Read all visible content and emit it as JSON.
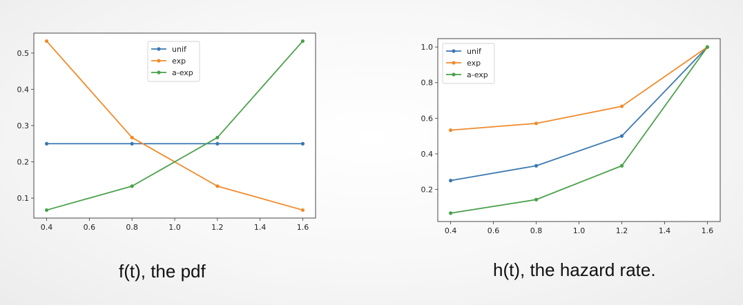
{
  "captions": [
    "f(t), the pdf",
    "h(t), the hazard rate."
  ],
  "chart_data": [
    {
      "type": "line",
      "title": "",
      "xlabel": "",
      "ylabel": "",
      "x": [
        0.4,
        0.8,
        1.2,
        1.6
      ],
      "xticks": [
        "0.4",
        "0.6",
        "0.8",
        "1.0",
        "1.2",
        "1.4",
        "1.6"
      ],
      "yticks": [
        "0.1",
        "0.2",
        "0.3",
        "0.4",
        "0.5"
      ],
      "xlim": [
        0.34,
        1.66
      ],
      "ylim": [
        0.045,
        0.555
      ],
      "legend_position": "upper-center",
      "series": [
        {
          "name": "unif",
          "color": "#3a78b0",
          "values": [
            0.25,
            0.25,
            0.25,
            0.25
          ]
        },
        {
          "name": "exp",
          "color": "#f08a2b",
          "values": [
            0.533,
            0.267,
            0.133,
            0.067
          ]
        },
        {
          "name": "a-exp",
          "color": "#4aa04a",
          "values": [
            0.067,
            0.133,
            0.267,
            0.533
          ]
        }
      ]
    },
    {
      "type": "line",
      "title": "",
      "xlabel": "",
      "ylabel": "",
      "x": [
        0.4,
        0.8,
        1.2,
        1.6
      ],
      "xticks": [
        "0.4",
        "0.6",
        "0.8",
        "1.0",
        "1.2",
        "1.4",
        "1.6"
      ],
      "yticks": [
        "0.2",
        "0.4",
        "0.6",
        "0.8",
        "1.0"
      ],
      "xlim": [
        0.34,
        1.66
      ],
      "ylim": [
        0.02,
        1.047
      ],
      "legend_position": "upper-left",
      "series": [
        {
          "name": "unif",
          "color": "#3a78b0",
          "values": [
            0.25,
            0.333,
            0.5,
            1.0
          ]
        },
        {
          "name": "exp",
          "color": "#f08a2b",
          "values": [
            0.533,
            0.571,
            0.667,
            1.0
          ]
        },
        {
          "name": "a-exp",
          "color": "#4aa04a",
          "values": [
            0.067,
            0.143,
            0.333,
            1.0
          ]
        }
      ]
    }
  ]
}
